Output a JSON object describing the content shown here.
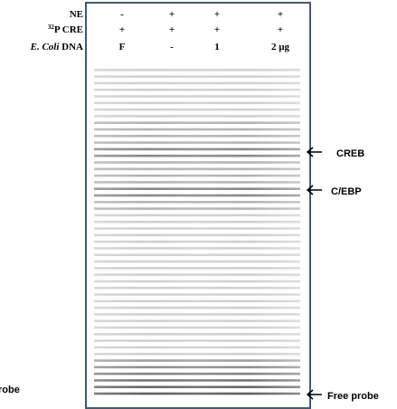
{
  "header": {
    "rows": [
      {
        "label": "NE",
        "lanes": [
          "-",
          "+",
          "+",
          "+"
        ]
      },
      {
        "label_sup": "32",
        "label": "P CRE",
        "lanes": [
          "+",
          "+",
          "+",
          "+"
        ]
      },
      {
        "label_italic": "E. Coli",
        "label": "DNA",
        "lanes": [
          "F",
          "-",
          "1",
          "2 µg"
        ]
      }
    ]
  },
  "annotations": [
    {
      "label": "CREB"
    },
    {
      "label": "C/EBP"
    },
    {
      "label": "Free probe"
    }
  ],
  "left_fragment": "robe"
}
